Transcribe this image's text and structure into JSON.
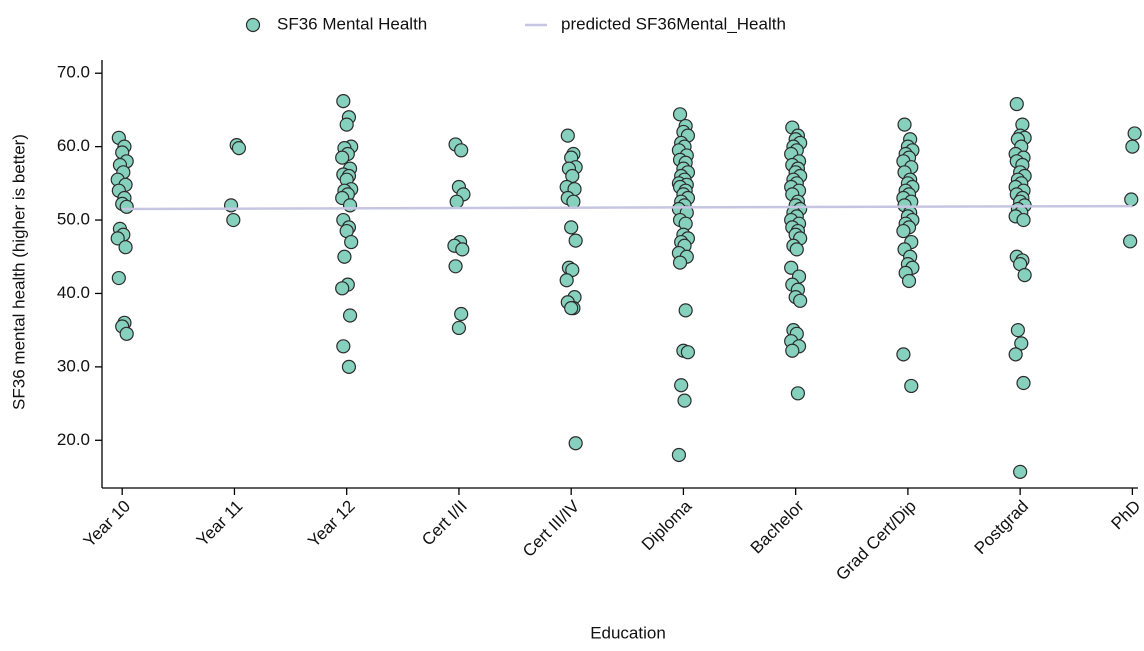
{
  "chart_data": {
    "type": "scatter",
    "x_label": "Education",
    "y_label": "SF36 mental health (higher is better)",
    "xlim": [
      0.82,
      10.05
    ],
    "ylim": [
      13.5,
      71.8
    ],
    "xticks": [
      {
        "value": 1,
        "label": "Year 10"
      },
      {
        "value": 2,
        "label": "Year 11"
      },
      {
        "value": 3,
        "label": "Year 12"
      },
      {
        "value": 4,
        "label": "Cert I/II"
      },
      {
        "value": 5,
        "label": "Cert III/IV"
      },
      {
        "value": 6,
        "label": "Diploma"
      },
      {
        "value": 7,
        "label": "Bachelor"
      },
      {
        "value": 8,
        "label": "Grad Cert/Dip"
      },
      {
        "value": 9,
        "label": "Postgrad"
      },
      {
        "value": 10,
        "label": "PhD"
      }
    ],
    "yticks": [
      {
        "value": 20,
        "label": "20.0"
      },
      {
        "value": 30,
        "label": "30.0"
      },
      {
        "value": 40,
        "label": "40.0"
      },
      {
        "value": 50,
        "label": "50.0"
      },
      {
        "value": 60,
        "label": "60.0"
      },
      {
        "value": 70,
        "label": "70.0"
      }
    ],
    "series": [
      {
        "name": "SF36 Mental Health",
        "type": "scatter",
        "color": "#86d1bd",
        "x": [
          0.97,
          1.02,
          1.0,
          1.04,
          0.98,
          1.01,
          0.96,
          1.03,
          0.97,
          1.02,
          1.0,
          1.04,
          0.98,
          1.01,
          0.96,
          1.03,
          0.97,
          1.02,
          1.0,
          1.04,
          2.02,
          2.04,
          1.97,
          1.99,
          2.97,
          3.02,
          3.0,
          3.04,
          2.98,
          3.01,
          2.96,
          3.03,
          2.97,
          3.02,
          3.0,
          3.04,
          2.98,
          3.01,
          2.96,
          3.03,
          2.97,
          3.02,
          3.0,
          3.04,
          2.98,
          3.01,
          2.96,
          3.03,
          2.97,
          3.02,
          3.97,
          4.02,
          4.0,
          4.04,
          3.98,
          4.01,
          3.96,
          4.03,
          3.97,
          4.02,
          4.0,
          4.97,
          5.02,
          5.0,
          5.04,
          4.98,
          5.01,
          4.96,
          5.03,
          4.97,
          5.02,
          5.0,
          5.04,
          4.98,
          5.01,
          4.96,
          5.03,
          4.97,
          5.02,
          5.0,
          5.04,
          5.97,
          6.02,
          6.0,
          6.04,
          5.98,
          6.01,
          5.96,
          6.03,
          5.97,
          6.02,
          6.0,
          6.04,
          5.98,
          6.01,
          5.96,
          6.03,
          5.97,
          6.02,
          6.0,
          6.04,
          5.98,
          6.01,
          5.96,
          6.03,
          5.97,
          6.02,
          6.0,
          6.04,
          5.98,
          6.01,
          5.96,
          6.03,
          5.97,
          6.02,
          6.0,
          6.04,
          5.98,
          6.01,
          5.96,
          6.97,
          7.02,
          7.0,
          7.04,
          6.98,
          7.01,
          6.96,
          7.03,
          6.97,
          7.02,
          7.0,
          7.04,
          6.98,
          7.01,
          6.96,
          7.03,
          6.97,
          7.02,
          7.0,
          7.04,
          6.98,
          7.01,
          6.96,
          7.03,
          6.97,
          7.02,
          7.0,
          7.04,
          6.98,
          7.01,
          6.96,
          7.03,
          6.97,
          7.02,
          7.0,
          7.04,
          6.98,
          7.01,
          6.96,
          7.03,
          6.97,
          7.02,
          7.97,
          8.02,
          8.0,
          8.04,
          7.98,
          8.01,
          7.96,
          8.03,
          7.97,
          8.02,
          8.0,
          8.04,
          7.98,
          8.01,
          7.96,
          8.03,
          7.97,
          8.02,
          8.0,
          8.04,
          7.98,
          8.01,
          7.96,
          8.03,
          7.97,
          8.02,
          8.0,
          8.04,
          7.98,
          8.01,
          7.96,
          8.03,
          8.97,
          9.02,
          9.0,
          9.04,
          8.98,
          9.01,
          8.96,
          9.03,
          8.97,
          9.02,
          9.0,
          9.04,
          8.98,
          9.01,
          8.96,
          9.03,
          8.97,
          9.02,
          9.0,
          9.04,
          8.98,
          9.01,
          8.96,
          9.03,
          8.97,
          9.02,
          9.0,
          9.04,
          8.98,
          9.01,
          8.96,
          9.03,
          9.0,
          10.02,
          10.0,
          9.99,
          9.98
        ],
        "values": [
          61.2,
          60.0,
          59.2,
          58.0,
          57.5,
          56.5,
          55.5,
          54.8,
          54.0,
          53.0,
          52.2,
          51.8,
          48.8,
          48.0,
          47.5,
          46.3,
          42.1,
          36.0,
          35.5,
          34.5,
          60.2,
          59.8,
          52.0,
          50.0,
          66.2,
          64.0,
          63.0,
          60.0,
          59.8,
          59.0,
          58.5,
          57.0,
          56.2,
          56.0,
          55.5,
          54.2,
          54.0,
          53.5,
          53.0,
          52.0,
          50.0,
          49.0,
          48.5,
          47.0,
          45.0,
          41.2,
          40.7,
          37.0,
          32.8,
          30.0,
          60.3,
          59.5,
          54.5,
          53.5,
          52.5,
          47.0,
          46.5,
          46.0,
          43.7,
          37.2,
          35.3,
          61.5,
          59.0,
          58.5,
          57.2,
          57.0,
          56.0,
          54.5,
          54.2,
          53.0,
          52.5,
          49.0,
          47.2,
          43.5,
          43.2,
          41.8,
          39.5,
          38.8,
          38.0,
          38.0,
          19.6,
          64.4,
          62.8,
          62.0,
          61.5,
          60.5,
          60.0,
          59.5,
          58.8,
          58.2,
          57.8,
          57.0,
          56.5,
          56.0,
          55.5,
          55.0,
          54.8,
          54.5,
          54.0,
          53.5,
          53.0,
          52.5,
          52.0,
          51.5,
          51.0,
          50.0,
          49.5,
          48.0,
          47.5,
          47.0,
          46.5,
          45.5,
          45.0,
          44.2,
          37.7,
          32.2,
          32.0,
          27.5,
          25.4,
          18.0,
          62.6,
          61.5,
          61.0,
          60.5,
          60.0,
          59.5,
          59.0,
          58.0,
          57.5,
          57.0,
          56.5,
          56.0,
          55.5,
          55.0,
          54.5,
          54.0,
          53.5,
          52.5,
          52.0,
          51.5,
          51.0,
          50.5,
          50.0,
          49.5,
          49.0,
          48.5,
          48.0,
          47.5,
          46.5,
          46.0,
          43.5,
          42.3,
          41.2,
          40.5,
          39.5,
          39.0,
          35.0,
          34.5,
          33.5,
          32.8,
          32.2,
          26.4,
          63.0,
          61.0,
          60.0,
          59.5,
          59.0,
          58.5,
          58.0,
          57.2,
          56.5,
          55.5,
          55.0,
          54.5,
          54.0,
          53.5,
          53.0,
          52.5,
          52.0,
          51.0,
          50.5,
          50.0,
          49.5,
          49.0,
          48.5,
          47.0,
          46.0,
          45.0,
          44.0,
          43.5,
          42.8,
          41.7,
          31.7,
          27.4,
          65.8,
          63.0,
          61.5,
          61.2,
          61.0,
          60.0,
          59.0,
          58.5,
          58.0,
          57.5,
          56.5,
          56.0,
          55.5,
          55.0,
          54.5,
          54.0,
          53.5,
          53.0,
          52.5,
          52.0,
          51.5,
          51.0,
          50.5,
          50.0,
          45.0,
          44.5,
          44.0,
          42.5,
          35.0,
          33.2,
          31.7,
          27.8,
          15.7,
          61.8,
          60.0,
          52.8,
          47.1
        ]
      },
      {
        "name": "predicted SF36Mental_Health",
        "type": "line",
        "color": "#c6c6e2",
        "x": [
          1,
          10
        ],
        "values": [
          51.5,
          51.9
        ]
      }
    ]
  }
}
